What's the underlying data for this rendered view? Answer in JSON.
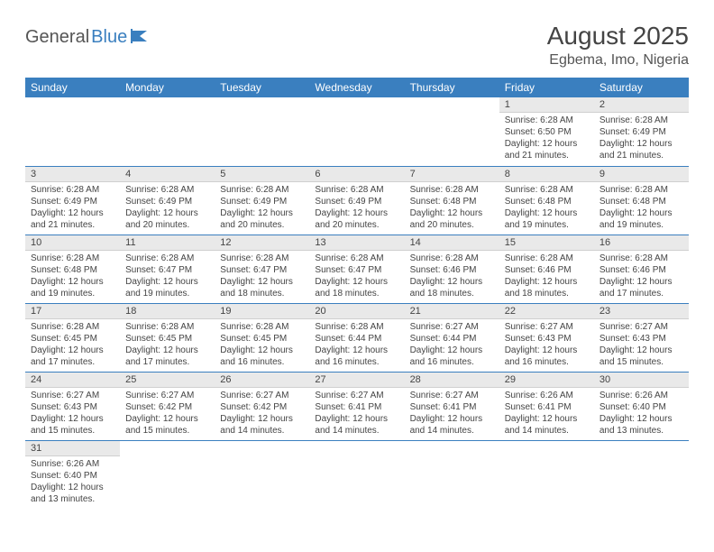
{
  "logo": {
    "part1": "General",
    "part2": "Blue"
  },
  "title": "August 2025",
  "location": "Egbema, Imo, Nigeria",
  "colors": {
    "header_bg": "#3a7fbf",
    "header_text": "#ffffff",
    "daynum_bg": "#e9e9e9",
    "row_border": "#3a7fbf",
    "body_text": "#444444",
    "logo_gray": "#555555",
    "logo_blue": "#3a7fbf"
  },
  "days_of_week": [
    "Sunday",
    "Monday",
    "Tuesday",
    "Wednesday",
    "Thursday",
    "Friday",
    "Saturday"
  ],
  "weeks": [
    [
      null,
      null,
      null,
      null,
      null,
      {
        "n": "1",
        "sr": "6:28 AM",
        "ss": "6:50 PM",
        "dl": "12 hours and 21 minutes."
      },
      {
        "n": "2",
        "sr": "6:28 AM",
        "ss": "6:49 PM",
        "dl": "12 hours and 21 minutes."
      }
    ],
    [
      {
        "n": "3",
        "sr": "6:28 AM",
        "ss": "6:49 PM",
        "dl": "12 hours and 21 minutes."
      },
      {
        "n": "4",
        "sr": "6:28 AM",
        "ss": "6:49 PM",
        "dl": "12 hours and 20 minutes."
      },
      {
        "n": "5",
        "sr": "6:28 AM",
        "ss": "6:49 PM",
        "dl": "12 hours and 20 minutes."
      },
      {
        "n": "6",
        "sr": "6:28 AM",
        "ss": "6:49 PM",
        "dl": "12 hours and 20 minutes."
      },
      {
        "n": "7",
        "sr": "6:28 AM",
        "ss": "6:48 PM",
        "dl": "12 hours and 20 minutes."
      },
      {
        "n": "8",
        "sr": "6:28 AM",
        "ss": "6:48 PM",
        "dl": "12 hours and 19 minutes."
      },
      {
        "n": "9",
        "sr": "6:28 AM",
        "ss": "6:48 PM",
        "dl": "12 hours and 19 minutes."
      }
    ],
    [
      {
        "n": "10",
        "sr": "6:28 AM",
        "ss": "6:48 PM",
        "dl": "12 hours and 19 minutes."
      },
      {
        "n": "11",
        "sr": "6:28 AM",
        "ss": "6:47 PM",
        "dl": "12 hours and 19 minutes."
      },
      {
        "n": "12",
        "sr": "6:28 AM",
        "ss": "6:47 PM",
        "dl": "12 hours and 18 minutes."
      },
      {
        "n": "13",
        "sr": "6:28 AM",
        "ss": "6:47 PM",
        "dl": "12 hours and 18 minutes."
      },
      {
        "n": "14",
        "sr": "6:28 AM",
        "ss": "6:46 PM",
        "dl": "12 hours and 18 minutes."
      },
      {
        "n": "15",
        "sr": "6:28 AM",
        "ss": "6:46 PM",
        "dl": "12 hours and 18 minutes."
      },
      {
        "n": "16",
        "sr": "6:28 AM",
        "ss": "6:46 PM",
        "dl": "12 hours and 17 minutes."
      }
    ],
    [
      {
        "n": "17",
        "sr": "6:28 AM",
        "ss": "6:45 PM",
        "dl": "12 hours and 17 minutes."
      },
      {
        "n": "18",
        "sr": "6:28 AM",
        "ss": "6:45 PM",
        "dl": "12 hours and 17 minutes."
      },
      {
        "n": "19",
        "sr": "6:28 AM",
        "ss": "6:45 PM",
        "dl": "12 hours and 16 minutes."
      },
      {
        "n": "20",
        "sr": "6:28 AM",
        "ss": "6:44 PM",
        "dl": "12 hours and 16 minutes."
      },
      {
        "n": "21",
        "sr": "6:27 AM",
        "ss": "6:44 PM",
        "dl": "12 hours and 16 minutes."
      },
      {
        "n": "22",
        "sr": "6:27 AM",
        "ss": "6:43 PM",
        "dl": "12 hours and 16 minutes."
      },
      {
        "n": "23",
        "sr": "6:27 AM",
        "ss": "6:43 PM",
        "dl": "12 hours and 15 minutes."
      }
    ],
    [
      {
        "n": "24",
        "sr": "6:27 AM",
        "ss": "6:43 PM",
        "dl": "12 hours and 15 minutes."
      },
      {
        "n": "25",
        "sr": "6:27 AM",
        "ss": "6:42 PM",
        "dl": "12 hours and 15 minutes."
      },
      {
        "n": "26",
        "sr": "6:27 AM",
        "ss": "6:42 PM",
        "dl": "12 hours and 14 minutes."
      },
      {
        "n": "27",
        "sr": "6:27 AM",
        "ss": "6:41 PM",
        "dl": "12 hours and 14 minutes."
      },
      {
        "n": "28",
        "sr": "6:27 AM",
        "ss": "6:41 PM",
        "dl": "12 hours and 14 minutes."
      },
      {
        "n": "29",
        "sr": "6:26 AM",
        "ss": "6:41 PM",
        "dl": "12 hours and 14 minutes."
      },
      {
        "n": "30",
        "sr": "6:26 AM",
        "ss": "6:40 PM",
        "dl": "12 hours and 13 minutes."
      }
    ],
    [
      {
        "n": "31",
        "sr": "6:26 AM",
        "ss": "6:40 PM",
        "dl": "12 hours and 13 minutes."
      },
      null,
      null,
      null,
      null,
      null,
      null
    ]
  ],
  "labels": {
    "sunrise": "Sunrise:",
    "sunset": "Sunset:",
    "daylight": "Daylight:"
  }
}
